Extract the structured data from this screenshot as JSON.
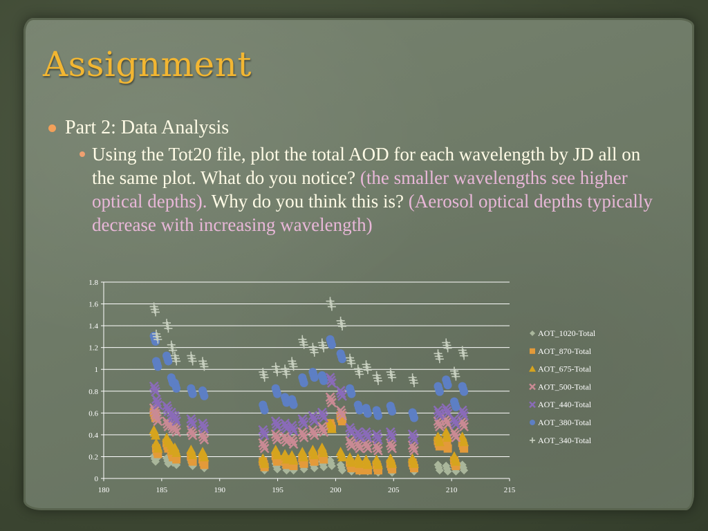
{
  "slide": {
    "title": "Assignment",
    "bullet1": "Part 2: Data Analysis",
    "bullet2": {
      "part1": "Using the Tot20 file, plot the total AOD for each wavelength by JD all on the same plot. What do you notice? ",
      "answer1": "(the smaller wavelengths see higher optical depths).",
      "part2": " Why do you think this is? ",
      "answer2": "(Aerosol optical depths typically decrease with increasing wavelength)"
    }
  },
  "chart_data": {
    "type": "scatter",
    "title": "",
    "xlabel": "",
    "ylabel": "",
    "xlim": [
      180,
      215
    ],
    "ylim": [
      0,
      1.8
    ],
    "xticks": [
      "180",
      "185",
      "190",
      "195",
      "200",
      "205",
      "210",
      "215"
    ],
    "yticks": [
      "0",
      "0.2",
      "0.4",
      "0.6",
      "0.8",
      "1",
      "1.2",
      "1.4",
      "1.6",
      "1.8"
    ],
    "grid": true,
    "legend_position": "right",
    "series": [
      {
        "name": "AOT_1020-Total",
        "color": "#a9b69b",
        "marker": "diamond",
        "x": [
          184.4,
          184.6,
          185.5,
          185.9,
          186.2,
          187.6,
          188.6,
          193.8,
          194.9,
          195.7,
          196.3,
          197.2,
          198.1,
          198.9,
          199.6,
          200.5,
          201.3,
          202.0,
          202.7,
          203.6,
          204.8,
          206.7,
          208.9,
          209.6,
          210.3,
          211.0
        ],
        "y": [
          0.18,
          0.22,
          0.16,
          0.17,
          0.15,
          0.14,
          0.12,
          0.1,
          0.11,
          0.1,
          0.1,
          0.11,
          0.12,
          0.13,
          0.14,
          0.1,
          0.09,
          0.09,
          0.09,
          0.08,
          0.08,
          0.09,
          0.1,
          0.09,
          0.09,
          0.1
        ]
      },
      {
        "name": "AOT_870-Total",
        "color": "#e39a3a",
        "marker": "square",
        "x": [
          184.4,
          184.6,
          185.5,
          185.9,
          186.2,
          187.6,
          188.6,
          193.8,
          194.9,
          195.7,
          196.3,
          197.2,
          198.1,
          198.9,
          199.6,
          200.5,
          201.3,
          202.0,
          202.7,
          203.6,
          204.8,
          206.7,
          208.9,
          209.6,
          210.3,
          211.0
        ],
        "y": [
          0.58,
          0.25,
          0.3,
          0.22,
          0.2,
          0.18,
          0.15,
          0.13,
          0.18,
          0.15,
          0.14,
          0.16,
          0.18,
          0.2,
          0.48,
          0.55,
          0.12,
          0.1,
          0.1,
          0.1,
          0.11,
          0.12,
          0.32,
          0.3,
          0.14,
          0.3
        ]
      },
      {
        "name": "AOT_675-Total",
        "color": "#d6a41e",
        "marker": "triangle",
        "x": [
          184.4,
          184.6,
          185.5,
          185.9,
          186.2,
          187.6,
          188.6,
          193.8,
          194.9,
          195.7,
          196.3,
          197.2,
          198.1,
          198.9,
          199.6,
          200.5,
          201.3,
          202.0,
          202.7,
          203.6,
          204.8,
          206.7,
          208.9,
          209.6,
          210.3,
          211.0
        ],
        "y": [
          0.42,
          0.3,
          0.35,
          0.28,
          0.26,
          0.24,
          0.22,
          0.16,
          0.24,
          0.2,
          0.19,
          0.22,
          0.24,
          0.26,
          0.48,
          0.22,
          0.17,
          0.16,
          0.15,
          0.15,
          0.16,
          0.16,
          0.36,
          0.4,
          0.18,
          0.36
        ]
      },
      {
        "name": "AOT_500-Total",
        "color": "#c98a94",
        "marker": "x",
        "x": [
          184.4,
          184.6,
          185.5,
          185.9,
          186.2,
          187.6,
          188.6,
          193.8,
          194.9,
          195.7,
          196.3,
          197.2,
          198.1,
          198.9,
          199.6,
          200.5,
          201.3,
          202.0,
          202.7,
          203.6,
          204.8,
          206.7,
          208.9,
          209.6,
          210.3,
          211.0
        ],
        "y": [
          0.62,
          0.55,
          0.5,
          0.48,
          0.45,
          0.42,
          0.38,
          0.3,
          0.38,
          0.36,
          0.34,
          0.4,
          0.42,
          0.45,
          0.72,
          0.6,
          0.32,
          0.3,
          0.3,
          0.28,
          0.3,
          0.28,
          0.5,
          0.52,
          0.4,
          0.5
        ]
      },
      {
        "name": "AOT_440-Total",
        "color": "#8a6bb8",
        "marker": "x",
        "x": [
          184.4,
          184.6,
          185.5,
          185.9,
          186.2,
          187.6,
          188.6,
          193.8,
          194.9,
          195.7,
          196.3,
          197.2,
          198.1,
          198.9,
          199.6,
          200.5,
          201.3,
          202.0,
          202.7,
          203.6,
          204.8,
          206.7,
          208.9,
          209.6,
          210.3,
          211.0
        ],
        "y": [
          0.82,
          0.7,
          0.64,
          0.58,
          0.55,
          0.52,
          0.48,
          0.42,
          0.5,
          0.48,
          0.46,
          0.52,
          0.55,
          0.58,
          0.9,
          0.78,
          0.44,
          0.4,
          0.4,
          0.38,
          0.4,
          0.38,
          0.6,
          0.62,
          0.52,
          0.6
        ]
      },
      {
        "name": "AOT_380-Total",
        "color": "#5d7fc4",
        "marker": "circle",
        "x": [
          184.4,
          184.6,
          185.5,
          185.9,
          186.2,
          187.6,
          188.6,
          193.8,
          194.9,
          195.7,
          196.3,
          197.2,
          198.1,
          198.9,
          199.6,
          200.5,
          201.3,
          202.0,
          202.7,
          203.6,
          204.8,
          206.7,
          208.9,
          209.6,
          210.3,
          211.0
        ],
        "y": [
          1.28,
          1.05,
          1.1,
          0.9,
          0.85,
          0.8,
          0.78,
          0.65,
          0.8,
          0.72,
          0.7,
          0.9,
          0.95,
          0.92,
          1.25,
          1.12,
          0.8,
          0.65,
          0.62,
          0.6,
          0.64,
          0.58,
          0.82,
          0.88,
          0.68,
          0.82
        ]
      },
      {
        "name": "AOT_340-Total",
        "color": "#c7cfbf",
        "marker": "plus",
        "x": [
          184.4,
          184.6,
          185.5,
          185.9,
          186.2,
          187.6,
          188.6,
          193.8,
          194.9,
          195.7,
          196.3,
          197.2,
          198.1,
          198.9,
          199.6,
          200.5,
          201.3,
          202.0,
          202.7,
          203.6,
          204.8,
          206.7,
          208.9,
          209.6,
          210.3,
          211.0
        ],
        "y": [
          1.55,
          1.3,
          1.4,
          1.2,
          1.1,
          1.1,
          1.05,
          0.95,
          1.0,
          0.98,
          1.05,
          1.25,
          1.18,
          1.22,
          1.6,
          1.42,
          1.08,
          0.98,
          1.02,
          0.92,
          0.95,
          0.9,
          1.12,
          1.22,
          0.96,
          1.15
        ]
      }
    ]
  }
}
